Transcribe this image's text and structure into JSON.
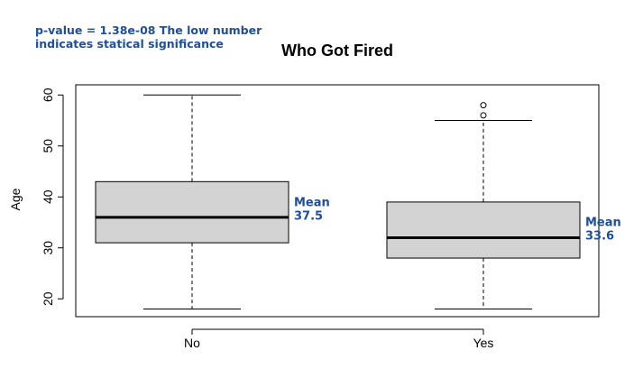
{
  "annotation": {
    "line1": "p-value = 1.38e-08 The low number",
    "line2": "indicates statical significance"
  },
  "chart_data": {
    "type": "boxplot",
    "title": "Who Got Fired",
    "xlabel": "",
    "ylabel": "Age",
    "ylim": [
      16.5,
      62
    ],
    "yticks": [
      20,
      30,
      40,
      50,
      60
    ],
    "categories": [
      "No",
      "Yes"
    ],
    "boxes": [
      {
        "name": "No",
        "min": 18,
        "q1": 31,
        "median": 36,
        "q3": 43,
        "max": 60,
        "outliers": [],
        "mean": 37.5,
        "mean_label": [
          "Mean",
          "37.5"
        ]
      },
      {
        "name": "Yes",
        "min": 18,
        "q1": 28,
        "median": 32,
        "q3": 39,
        "max": 55,
        "outliers": [
          56,
          58
        ],
        "mean": 33.6,
        "mean_label": [
          "Mean",
          "33.6"
        ]
      }
    ],
    "colors": {
      "box_fill": "#d3d3d3",
      "annotation": "#1f4e9c"
    }
  }
}
